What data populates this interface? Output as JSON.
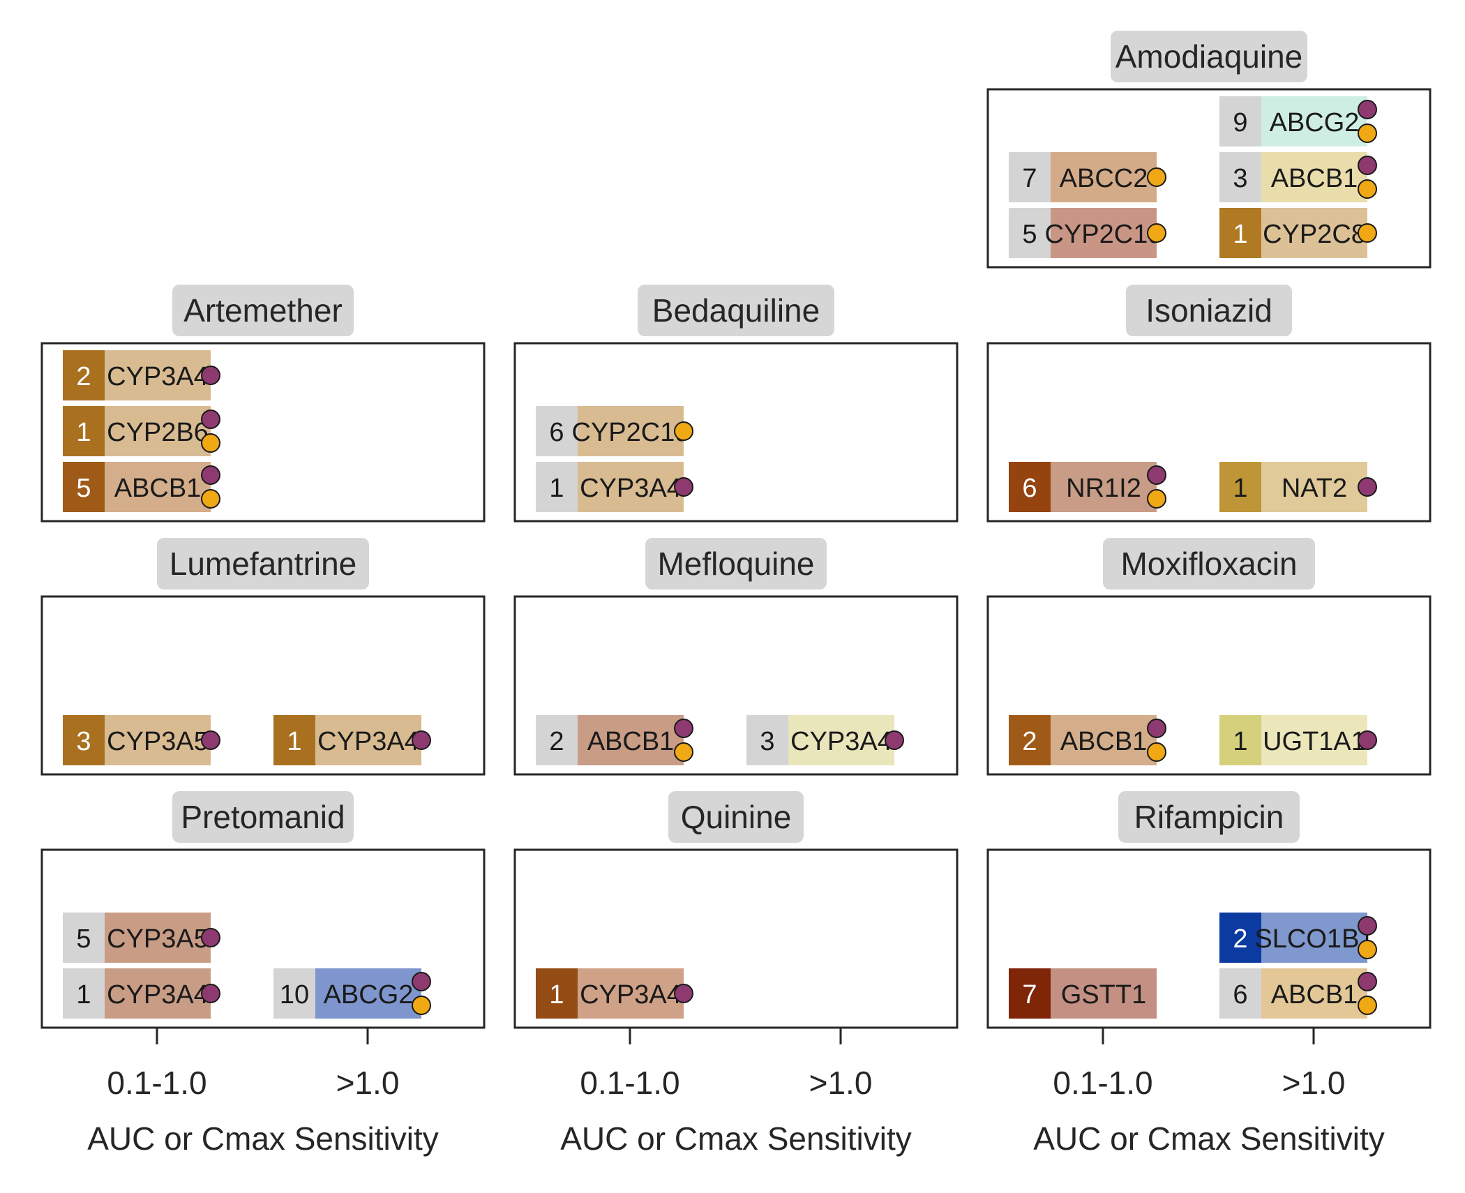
{
  "chart_data": {
    "type": "table",
    "x_categories": [
      "0.1-1.0",
      ">1.0"
    ],
    "xlabel": "AUC or Cmax Sensitivity",
    "marker_colors": {
      "purple": "#8e3a70",
      "orange": "#f0a814"
    },
    "panels": [
      {
        "drug": "Amodiaquine",
        "rows": 3,
        "columns": [
          [
            {
              "gene": "ABCC2",
              "count": 7,
              "count_color": "#d4d4d4",
              "color": "#d4ab88",
              "markers": [
                "orange"
              ]
            },
            {
              "gene": "CYP2C19",
              "count": 5,
              "count_color": "#d4d4d4",
              "color": "#c99686",
              "markers": [
                "orange"
              ]
            }
          ],
          [
            {
              "gene": "ABCG2",
              "count": 9,
              "count_color": "#d4d4d4",
              "color": "#cfeee3",
              "markers": [
                "purple",
                "orange"
              ]
            },
            {
              "gene": "ABCB1",
              "count": 3,
              "count_color": "#d4d4d4",
              "color": "#e9ddac",
              "markers": [
                "purple",
                "orange"
              ]
            },
            {
              "gene": "CYP2C8",
              "count": 1,
              "count_color": "#b07a24",
              "color": "#dcc196",
              "markers": [
                "orange"
              ]
            }
          ]
        ]
      },
      {
        "drug": "Artemether",
        "rows": 3,
        "columns": [
          [
            {
              "gene": "CYP3A4",
              "count": 2,
              "count_color": "#a9711f",
              "color": "#d9bb92",
              "markers": [
                "purple"
              ]
            },
            {
              "gene": "CYP2B6",
              "count": 1,
              "count_color": "#a9711f",
              "color": "#d9bb92",
              "markers": [
                "purple",
                "orange"
              ]
            },
            {
              "gene": "ABCB1",
              "count": 5,
              "count_color": "#a05a18",
              "color": "#d4ae8b",
              "markers": [
                "purple",
                "orange"
              ]
            }
          ],
          []
        ]
      },
      {
        "drug": "Bedaquiline",
        "rows": 3,
        "columns": [
          [
            {
              "gene": "CYP2C19",
              "count": 6,
              "count_color": "#d4d4d4",
              "color": "#d9bb92",
              "markers": [
                "orange"
              ]
            },
            {
              "gene": "CYP3A4",
              "count": 1,
              "count_color": "#d4d4d4",
              "color": "#d9bb92",
              "markers": [
                "purple"
              ]
            }
          ],
          []
        ]
      },
      {
        "drug": "Isoniazid",
        "rows": 3,
        "columns": [
          [
            {
              "gene": "NR1I2",
              "count": 6,
              "count_color": "#954410",
              "color": "#c89c86",
              "markers": [
                "purple",
                "orange"
              ]
            }
          ],
          [
            {
              "gene": "NAT2",
              "count": 1,
              "count_color": "#bf9637",
              "color": "#e1ca99",
              "markers": [
                "purple"
              ]
            }
          ]
        ]
      },
      {
        "drug": "Lumefantrine",
        "rows": 3,
        "columns": [
          [
            {
              "gene": "CYP3A5",
              "count": 3,
              "count_color": "#a9711f",
              "color": "#d9bb92",
              "markers": [
                "purple"
              ]
            }
          ],
          [
            {
              "gene": "CYP3A4",
              "count": 1,
              "count_color": "#a9711f",
              "color": "#d9bb92",
              "markers": [
                "purple"
              ]
            }
          ]
        ]
      },
      {
        "drug": "Mefloquine",
        "rows": 3,
        "columns": [
          [
            {
              "gene": "ABCB1",
              "count": 2,
              "count_color": "#d4d4d4",
              "color": "#c99c86",
              "markers": [
                "purple",
                "orange"
              ]
            }
          ],
          [
            {
              "gene": "CYP3A4",
              "count": 3,
              "count_color": "#d4d4d4",
              "color": "#e9e6bb",
              "markers": [
                "purple"
              ]
            }
          ]
        ]
      },
      {
        "drug": "Moxifloxacin",
        "rows": 3,
        "columns": [
          [
            {
              "gene": "ABCB1",
              "count": 2,
              "count_color": "#a05a18",
              "color": "#d4ae8b",
              "markers": [
                "purple",
                "orange"
              ]
            }
          ],
          [
            {
              "gene": "UGT1A1",
              "count": 1,
              "count_color": "#d4d07c",
              "color": "#ebe7bb",
              "markers": [
                "purple"
              ]
            }
          ]
        ]
      },
      {
        "drug": "Pretomanid",
        "rows": 3,
        "columns": [
          [
            {
              "gene": "CYP3A5",
              "count": 5,
              "count_color": "#d4d4d4",
              "color": "#c99c86",
              "markers": [
                "purple"
              ]
            },
            {
              "gene": "CYP3A4",
              "count": 1,
              "count_color": "#d4d4d4",
              "color": "#c99c86",
              "markers": [
                "purple"
              ]
            }
          ],
          [
            {
              "gene": "ABCG2",
              "count": 10,
              "count_color": "#d4d4d4",
              "color": "#7e96cd",
              "markers": [
                "purple",
                "orange"
              ]
            }
          ]
        ]
      },
      {
        "drug": "Quinine",
        "rows": 3,
        "columns": [
          [
            {
              "gene": "CYP3A4",
              "count": 1,
              "count_color": "#954c14",
              "color": "#cfa287",
              "markers": [
                "purple"
              ]
            }
          ],
          []
        ]
      },
      {
        "drug": "Rifampicin",
        "rows": 3,
        "columns": [
          [
            {
              "gene": "GSTT1",
              "count": 7,
              "count_color": "#7f2508",
              "color": "#c39083",
              "markers": []
            }
          ],
          [
            {
              "gene": "SLCO1B1",
              "count": 2,
              "count_color": "#0b3aa0",
              "color": "#7f98cd",
              "markers": [
                "purple",
                "orange"
              ]
            },
            {
              "gene": "ABCB1",
              "count": 6,
              "count_color": "#d4d4d4",
              "color": "#e3c797",
              "markers": [
                "purple",
                "orange"
              ]
            }
          ]
        ]
      }
    ]
  }
}
